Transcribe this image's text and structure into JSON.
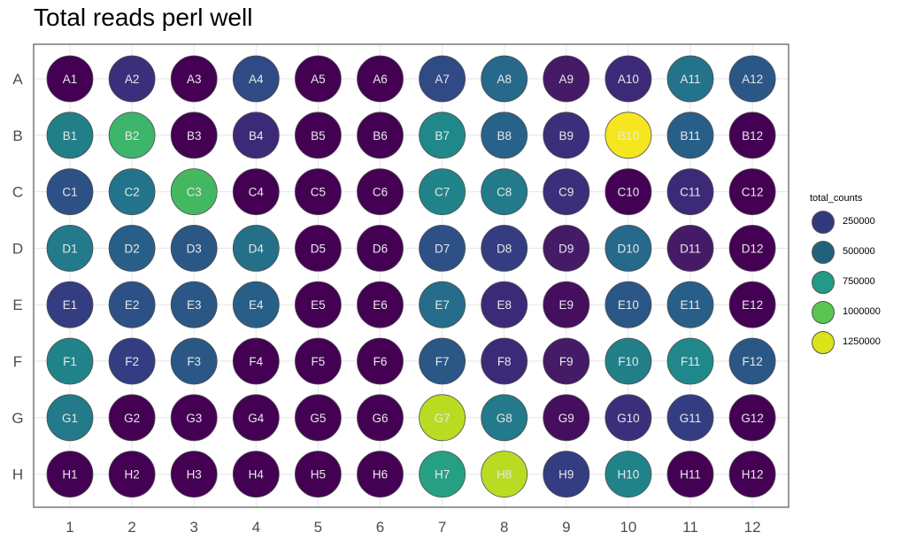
{
  "chart_data": {
    "type": "scatter",
    "title": "Total reads perl well",
    "xlabel": "",
    "ylabel": "",
    "rows": [
      "A",
      "B",
      "C",
      "D",
      "E",
      "F",
      "G",
      "H"
    ],
    "cols": [
      "1",
      "2",
      "3",
      "4",
      "5",
      "6",
      "7",
      "8",
      "9",
      "10",
      "11",
      "12"
    ],
    "grid": true,
    "legend": {
      "title": "total_counts",
      "position": "right",
      "breaks": [
        250000,
        500000,
        750000,
        1000000,
        1250000
      ],
      "labels": [
        "250000",
        "500000",
        "750000",
        "1000000",
        "1250000"
      ],
      "colors": [
        "#31397f",
        "#22617a",
        "#229a86",
        "#58c651",
        "#dce31a"
      ]
    },
    "wells": [
      {
        "label": "A1",
        "value": 60000,
        "color": "#440154"
      },
      {
        "label": "A2",
        "value": 300000,
        "color": "#3b2f7b"
      },
      {
        "label": "A3",
        "value": 60000,
        "color": "#440154"
      },
      {
        "label": "A4",
        "value": 400000,
        "color": "#2f4a84"
      },
      {
        "label": "A5",
        "value": 60000,
        "color": "#440154"
      },
      {
        "label": "A6",
        "value": 60000,
        "color": "#440154"
      },
      {
        "label": "A7",
        "value": 400000,
        "color": "#2f4a84"
      },
      {
        "label": "A8",
        "value": 550000,
        "color": "#26698a"
      },
      {
        "label": "A9",
        "value": 150000,
        "color": "#451a67"
      },
      {
        "label": "A10",
        "value": 250000,
        "color": "#3c2a78"
      },
      {
        "label": "A11",
        "value": 620000,
        "color": "#23738a"
      },
      {
        "label": "A12",
        "value": 450000,
        "color": "#2a5785"
      },
      {
        "label": "B1",
        "value": 680000,
        "color": "#217f88"
      },
      {
        "label": "B2",
        "value": 1050000,
        "color": "#3db56a"
      },
      {
        "label": "B3",
        "value": 60000,
        "color": "#440154"
      },
      {
        "label": "B4",
        "value": 250000,
        "color": "#3c2a78"
      },
      {
        "label": "B5",
        "value": 60000,
        "color": "#440154"
      },
      {
        "label": "B6",
        "value": 60000,
        "color": "#440154"
      },
      {
        "label": "B7",
        "value": 720000,
        "color": "#20888a"
      },
      {
        "label": "B8",
        "value": 520000,
        "color": "#27628a"
      },
      {
        "label": "B9",
        "value": 300000,
        "color": "#3b2f7b"
      },
      {
        "label": "B10",
        "value": 1400000,
        "color": "#f6e620"
      },
      {
        "label": "B11",
        "value": 500000,
        "color": "#275f89"
      },
      {
        "label": "B12",
        "value": 60000,
        "color": "#440154"
      },
      {
        "label": "C1",
        "value": 420000,
        "color": "#2d5086"
      },
      {
        "label": "C2",
        "value": 620000,
        "color": "#23738a"
      },
      {
        "label": "C3",
        "value": 1080000,
        "color": "#44b860"
      },
      {
        "label": "C4",
        "value": 60000,
        "color": "#440154"
      },
      {
        "label": "C5",
        "value": 60000,
        "color": "#440154"
      },
      {
        "label": "C6",
        "value": 60000,
        "color": "#440154"
      },
      {
        "label": "C7",
        "value": 700000,
        "color": "#20838a"
      },
      {
        "label": "C8",
        "value": 650000,
        "color": "#227a8a"
      },
      {
        "label": "C9",
        "value": 300000,
        "color": "#3b2f7b"
      },
      {
        "label": "C10",
        "value": 60000,
        "color": "#440154"
      },
      {
        "label": "C11",
        "value": 250000,
        "color": "#3c2a78"
      },
      {
        "label": "C12",
        "value": 60000,
        "color": "#440154"
      },
      {
        "label": "D1",
        "value": 650000,
        "color": "#227a8a"
      },
      {
        "label": "D2",
        "value": 500000,
        "color": "#275f89"
      },
      {
        "label": "D3",
        "value": 450000,
        "color": "#2a5785"
      },
      {
        "label": "D4",
        "value": 600000,
        "color": "#247089"
      },
      {
        "label": "D5",
        "value": 60000,
        "color": "#440154"
      },
      {
        "label": "D6",
        "value": 60000,
        "color": "#440154"
      },
      {
        "label": "D7",
        "value": 420000,
        "color": "#2d5086"
      },
      {
        "label": "D8",
        "value": 350000,
        "color": "#343d82"
      },
      {
        "label": "D9",
        "value": 150000,
        "color": "#451a67"
      },
      {
        "label": "D10",
        "value": 550000,
        "color": "#26698a"
      },
      {
        "label": "D11",
        "value": 150000,
        "color": "#451a67"
      },
      {
        "label": "D12",
        "value": 60000,
        "color": "#440154"
      },
      {
        "label": "E1",
        "value": 350000,
        "color": "#343d82"
      },
      {
        "label": "E2",
        "value": 420000,
        "color": "#2d5086"
      },
      {
        "label": "E3",
        "value": 450000,
        "color": "#2a5785"
      },
      {
        "label": "E4",
        "value": 500000,
        "color": "#275f89"
      },
      {
        "label": "E5",
        "value": 60000,
        "color": "#440154"
      },
      {
        "label": "E6",
        "value": 60000,
        "color": "#440154"
      },
      {
        "label": "E7",
        "value": 580000,
        "color": "#256d8a"
      },
      {
        "label": "E8",
        "value": 250000,
        "color": "#3c2a78"
      },
      {
        "label": "E9",
        "value": 100000,
        "color": "#450e5e"
      },
      {
        "label": "E10",
        "value": 450000,
        "color": "#2a5785"
      },
      {
        "label": "E11",
        "value": 500000,
        "color": "#275f89"
      },
      {
        "label": "E12",
        "value": 60000,
        "color": "#440154"
      },
      {
        "label": "F1",
        "value": 700000,
        "color": "#20838a"
      },
      {
        "label": "F2",
        "value": 350000,
        "color": "#343d82"
      },
      {
        "label": "F3",
        "value": 450000,
        "color": "#2a5785"
      },
      {
        "label": "F4",
        "value": 60000,
        "color": "#440154"
      },
      {
        "label": "F5",
        "value": 60000,
        "color": "#440154"
      },
      {
        "label": "F6",
        "value": 60000,
        "color": "#440154"
      },
      {
        "label": "F7",
        "value": 450000,
        "color": "#2a5785"
      },
      {
        "label": "F8",
        "value": 250000,
        "color": "#3c2a78"
      },
      {
        "label": "F9",
        "value": 150000,
        "color": "#451a67"
      },
      {
        "label": "F10",
        "value": 680000,
        "color": "#217f88"
      },
      {
        "label": "F11",
        "value": 720000,
        "color": "#20888a"
      },
      {
        "label": "F12",
        "value": 450000,
        "color": "#2a5785"
      },
      {
        "label": "G1",
        "value": 650000,
        "color": "#227a8a"
      },
      {
        "label": "G2",
        "value": 60000,
        "color": "#440154"
      },
      {
        "label": "G3",
        "value": 60000,
        "color": "#440154"
      },
      {
        "label": "G4",
        "value": 60000,
        "color": "#440154"
      },
      {
        "label": "G5",
        "value": 60000,
        "color": "#440154"
      },
      {
        "label": "G6",
        "value": 60000,
        "color": "#440154"
      },
      {
        "label": "G7",
        "value": 1300000,
        "color": "#b9dc22"
      },
      {
        "label": "G8",
        "value": 650000,
        "color": "#227a8a"
      },
      {
        "label": "G9",
        "value": 100000,
        "color": "#450e5e"
      },
      {
        "label": "G10",
        "value": 300000,
        "color": "#3b2f7b"
      },
      {
        "label": "G11",
        "value": 350000,
        "color": "#343d82"
      },
      {
        "label": "G12",
        "value": 60000,
        "color": "#440154"
      },
      {
        "label": "H1",
        "value": 60000,
        "color": "#440154"
      },
      {
        "label": "H2",
        "value": 60000,
        "color": "#440154"
      },
      {
        "label": "H3",
        "value": 60000,
        "color": "#440154"
      },
      {
        "label": "H4",
        "value": 60000,
        "color": "#440154"
      },
      {
        "label": "H5",
        "value": 60000,
        "color": "#440154"
      },
      {
        "label": "H6",
        "value": 60000,
        "color": "#440154"
      },
      {
        "label": "H7",
        "value": 850000,
        "color": "#25a083"
      },
      {
        "label": "H8",
        "value": 1300000,
        "color": "#b9dc22"
      },
      {
        "label": "H9",
        "value": 350000,
        "color": "#343d82"
      },
      {
        "label": "H10",
        "value": 700000,
        "color": "#20838a"
      },
      {
        "label": "H11",
        "value": 60000,
        "color": "#440154"
      },
      {
        "label": "H12",
        "value": 60000,
        "color": "#440154"
      }
    ]
  }
}
